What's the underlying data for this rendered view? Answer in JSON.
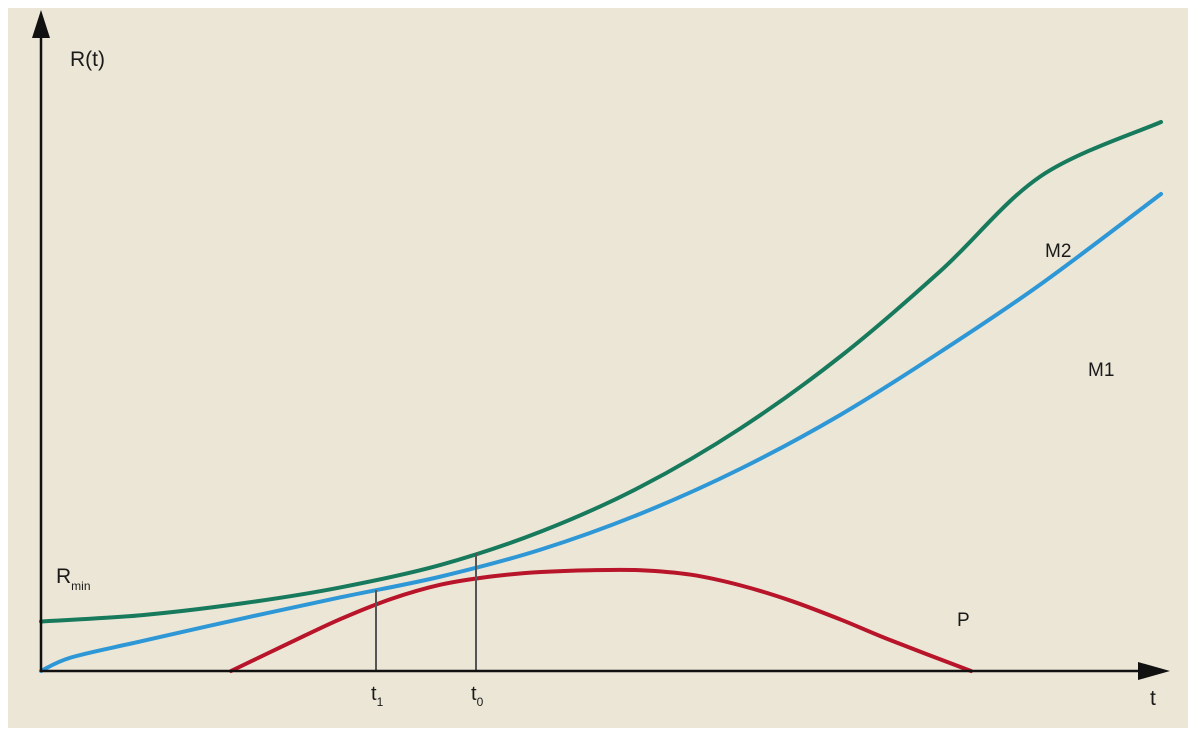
{
  "chart_data": {
    "type": "line",
    "title": "",
    "ylabel": "R(t)",
    "xlabel": "t",
    "rmin_label": {
      "main": "R",
      "sub": "min"
    },
    "ticks": [
      {
        "main": "t",
        "sub": "1",
        "x": 3.35
      },
      {
        "main": "t",
        "sub": "0",
        "x": 4.35
      }
    ],
    "xlim": [
      0,
      11
    ],
    "ylim": [
      0,
      6.4
    ],
    "grid": false,
    "colors": {
      "M2": "#177a5c",
      "M1": "#2e97d6",
      "P": "#b8142a",
      "axis": "#111111"
    },
    "series": [
      {
        "name": "M2",
        "color": "#177a5c",
        "x": [
          0,
          1,
          2,
          3,
          4,
          5,
          6,
          7,
          8,
          9,
          10,
          11.2
        ],
        "y": [
          0.55,
          0.62,
          0.75,
          0.93,
          1.18,
          1.55,
          2.05,
          2.7,
          3.5,
          4.45,
          5.5,
          6.1
        ]
      },
      {
        "name": "M1",
        "color": "#2e97d6",
        "x": [
          0,
          0.3,
          1,
          2,
          3,
          4,
          5,
          6,
          7,
          8,
          9,
          10,
          11.2
        ],
        "y": [
          0,
          0.15,
          0.33,
          0.58,
          0.82,
          1.05,
          1.35,
          1.75,
          2.25,
          2.85,
          3.55,
          4.3,
          5.3
        ]
      },
      {
        "name": "P",
        "color": "#b8142a",
        "x": [
          1.9,
          2.5,
          3,
          3.5,
          4,
          4.5,
          5,
          5.5,
          6,
          6.5,
          7,
          7.5,
          8,
          8.5,
          9.3
        ],
        "y": [
          0,
          0.32,
          0.58,
          0.8,
          0.96,
          1.05,
          1.1,
          1.12,
          1.12,
          1.07,
          0.95,
          0.78,
          0.57,
          0.34,
          0
        ]
      }
    ]
  }
}
